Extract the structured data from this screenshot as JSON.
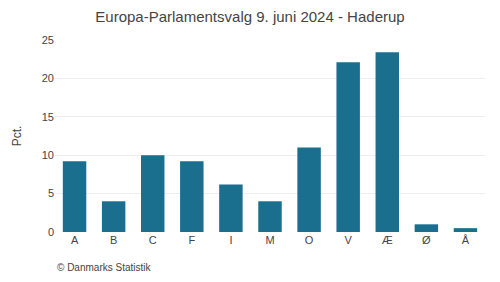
{
  "chart_data": {
    "type": "bar",
    "title": "Europa-Parlamentsvalg 9. juni 2024 - Haderup",
    "categories": [
      "A",
      "B",
      "C",
      "F",
      "I",
      "M",
      "O",
      "V",
      "Æ",
      "Ø",
      "Å"
    ],
    "values": [
      9.2,
      4.0,
      10.0,
      9.2,
      6.2,
      4.0,
      11.0,
      22.1,
      23.4,
      1.0,
      0.5
    ],
    "color": "#1a6e8e",
    "ylabel": "Pct.",
    "ylim": [
      0,
      25
    ],
    "yticks": [
      0,
      5,
      10,
      15,
      20,
      25
    ],
    "grid": true,
    "annotations": [
      "© Danmarks Statistik"
    ]
  }
}
